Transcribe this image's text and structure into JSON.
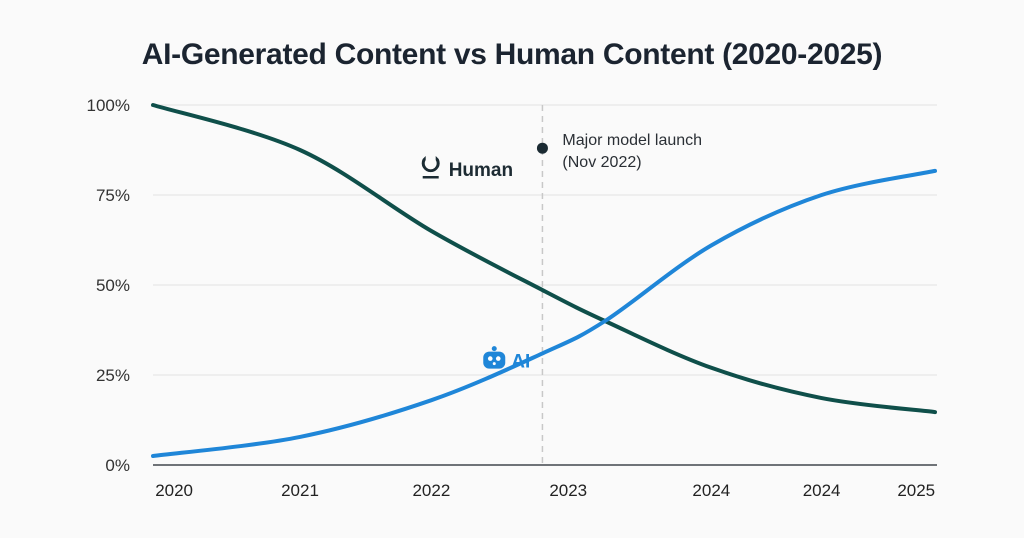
{
  "chart_data": {
    "type": "line",
    "title": "AI-Generated Content vs Human Content (2020-2025)",
    "xlabel": "",
    "ylabel": "",
    "ylim": [
      0,
      100
    ],
    "y_ticks": [
      "0%",
      "25%",
      "50%",
      "75%",
      "100%"
    ],
    "y_tick_values": [
      0,
      25,
      50,
      75,
      100
    ],
    "x_tick_labels": [
      "2020",
      "2021",
      "2022",
      "2023",
      "2024",
      "2024",
      "2025"
    ],
    "x_tick_positions": [
      0.027,
      0.188,
      0.356,
      0.531,
      0.714,
      0.855,
      0.976
    ],
    "grid": true,
    "x_domain": [
      0,
      1
    ],
    "series": [
      {
        "name": "Human",
        "color": "#0f4f4a",
        "icon": "human-icon",
        "x": [
          0.0,
          0.188,
          0.356,
          0.498,
          0.578,
          0.714,
          0.855,
          1.0
        ],
        "values": [
          100,
          87.5,
          65,
          48.6,
          40,
          27,
          18.6,
          14.7
        ]
      },
      {
        "name": "AI",
        "color": "#1f86d8",
        "icon": "robot-icon",
        "x": [
          0.0,
          0.188,
          0.356,
          0.498,
          0.578,
          0.714,
          0.855,
          1.0
        ],
        "values": [
          2.5,
          7.8,
          18,
          31,
          40,
          61,
          75,
          81.7
        ]
      }
    ],
    "annotations": [
      {
        "type": "vertical-line",
        "x": 0.498,
        "label_line1": "Major model launch",
        "label_line2": "(Nov 2022)",
        "marker_value": 88
      }
    ],
    "series_labels": [
      {
        "text": "Human",
        "x": 0.35,
        "y": 82.5
      },
      {
        "text": "AI",
        "x": 0.43,
        "y": 29
      }
    ]
  }
}
